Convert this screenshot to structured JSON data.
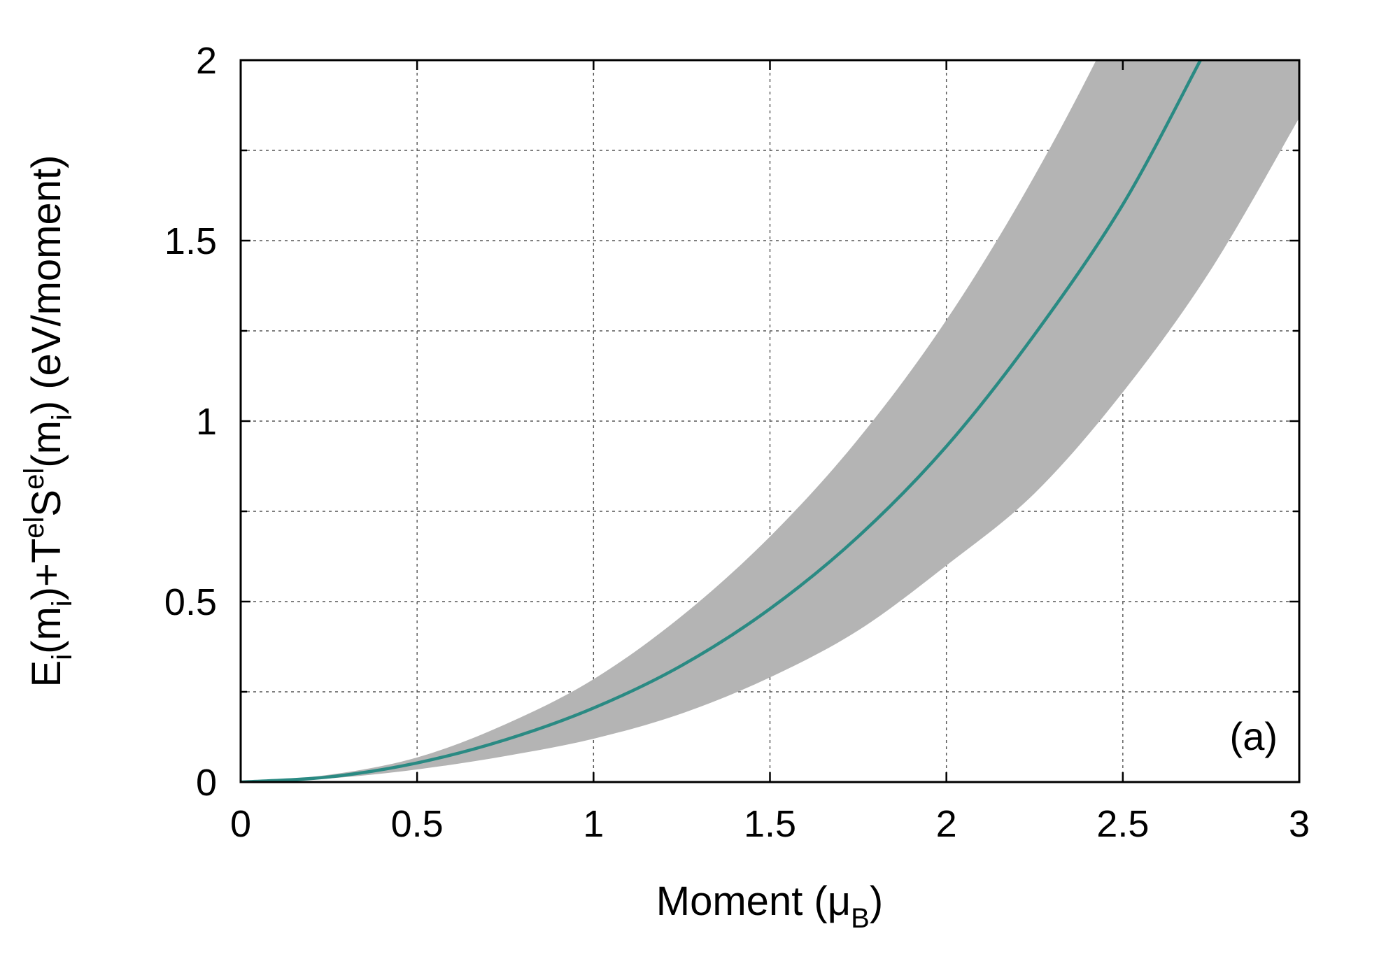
{
  "chart_data": {
    "type": "area",
    "panel_label": "(a)",
    "xlabel": {
      "main": "Moment (μ",
      "sub": "B",
      "tail": ")"
    },
    "ylabel": {
      "parts": [
        {
          "text": "E",
          "style": "normal"
        },
        {
          "text": "i",
          "style": "sub"
        },
        {
          "text": "(m",
          "style": "normal"
        },
        {
          "text": "i",
          "style": "sub"
        },
        {
          "text": ")+T",
          "style": "normal"
        },
        {
          "text": "el",
          "style": "sup"
        },
        {
          "text": "S",
          "style": "normal"
        },
        {
          "text": "el",
          "style": "sup"
        },
        {
          "text": "(m",
          "style": "normal"
        },
        {
          "text": "i",
          "style": "sub"
        },
        {
          "text": ") (eV/moment)",
          "style": "normal"
        }
      ]
    },
    "xlim": [
      0,
      3
    ],
    "ylim": [
      0,
      2
    ],
    "x_ticks": [
      0,
      0.5,
      1,
      1.5,
      2,
      2.5,
      3
    ],
    "x_tick_labels": [
      "0",
      "0.5",
      "1",
      "1.5",
      "2",
      "2.5",
      "3"
    ],
    "y_ticks": [
      0,
      0.5,
      1,
      1.5,
      2
    ],
    "y_tick_labels": [
      "0",
      "0.5",
      "1",
      "1.5",
      "2"
    ],
    "y_minor_ticks": [
      0.25,
      0.75,
      1.25,
      1.75
    ],
    "grid": true,
    "colors": {
      "line": "#2a8a83",
      "band": "#b4b4b4"
    },
    "series": [
      {
        "kind": "line",
        "x": [
          0,
          0.25,
          0.5,
          0.75,
          1.0,
          1.25,
          1.5,
          1.75,
          2.0,
          2.25,
          2.5,
          2.72
        ],
        "y": [
          0,
          0.014,
          0.053,
          0.117,
          0.205,
          0.323,
          0.48,
          0.68,
          0.93,
          1.24,
          1.6,
          2.0
        ]
      },
      {
        "kind": "band",
        "x": [
          0,
          0.25,
          0.5,
          0.75,
          1.0,
          1.25,
          1.5,
          1.75,
          2.0,
          2.25,
          2.5,
          2.75,
          3.0
        ],
        "upper": [
          0,
          0.02,
          0.068,
          0.16,
          0.285,
          0.46,
          0.68,
          0.95,
          1.28,
          1.68,
          2.15,
          2.7,
          3.3
        ],
        "lower": [
          0,
          0.01,
          0.035,
          0.072,
          0.12,
          0.19,
          0.29,
          0.42,
          0.6,
          0.8,
          1.08,
          1.42,
          1.84
        ]
      }
    ]
  }
}
